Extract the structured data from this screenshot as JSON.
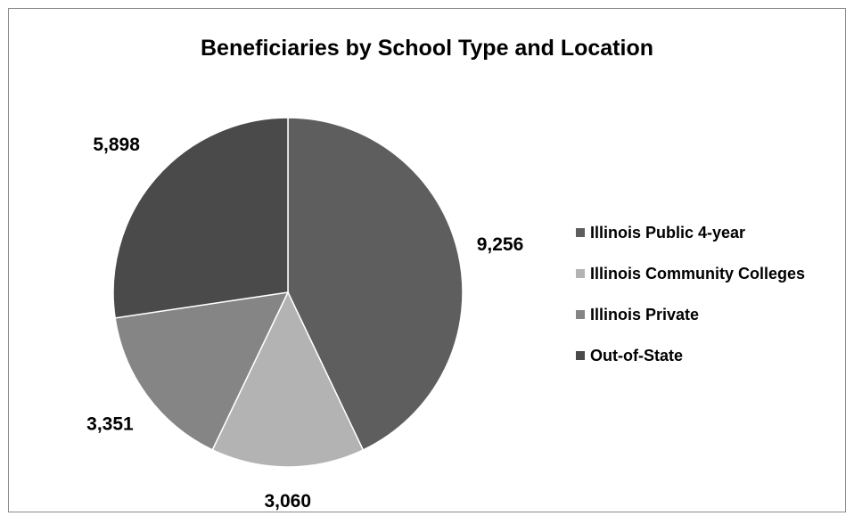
{
  "chart_data": {
    "type": "pie",
    "title": "Beneficiaries by School Type and Location",
    "categories": [
      "Illinois Public 4-year",
      "Illinois Community Colleges",
      "Illinois Private",
      "Out-of-State"
    ],
    "values": [
      9256,
      3060,
      3351,
      5898
    ],
    "value_labels": [
      "9,256",
      "3,060",
      "3,351",
      "5,898"
    ],
    "colors": [
      "#5e5e5e",
      "#b3b3b3",
      "#858585",
      "#4a4a4a"
    ],
    "start_angle_deg": 0,
    "direction": "clockwise",
    "legend_position": "right"
  }
}
